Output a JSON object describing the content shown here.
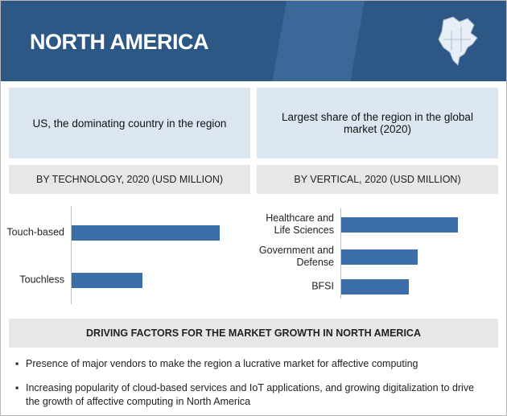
{
  "header": {
    "title": "NORTH AMERICA"
  },
  "highlights": [
    "US, the dominating country in the region",
    "Largest share of the region in the global market (2020)"
  ],
  "chart_data": [
    {
      "type": "bar",
      "orientation": "horizontal",
      "title": "BY TECHNOLOGY, 2020 (USD MILLION)",
      "categories": [
        "Touch-based",
        "Touchless"
      ],
      "values": [
        184,
        88
      ],
      "color": "#3c6ea8"
    },
    {
      "type": "bar",
      "orientation": "horizontal",
      "title": "BY VERTICAL, 2020 (USD MILLION)",
      "categories": [
        "Healthcare and Life Sciences",
        "Government and Defense",
        "BFSI"
      ],
      "values": [
        145,
        95,
        84
      ],
      "color": "#3c6ea8"
    }
  ],
  "drivers": {
    "title": "DRIVING FACTORS FOR THE MARKET GROWTH IN NORTH AMERICA",
    "items": [
      "Presence of major vendors to make the region a lucrative market for affective computing",
      "Increasing popularity of cloud-based services and IoT applications, and growing digitalization to drive the growth of affective computing in North America"
    ]
  }
}
